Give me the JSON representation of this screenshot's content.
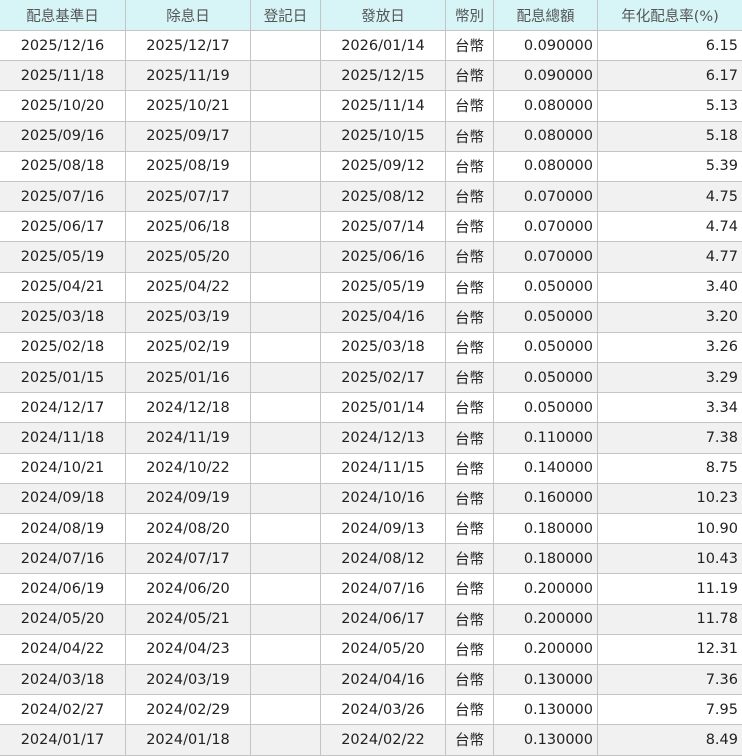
{
  "columns": [
    "配息基準日",
    "除息日",
    "登記日",
    "發放日",
    "幣別",
    "配息總額",
    "年化配息率(%)"
  ],
  "rows": [
    [
      "2025/12/16",
      "2025/12/17",
      "",
      "2026/01/14",
      "台幣",
      "0.090000",
      "6.15"
    ],
    [
      "2025/11/18",
      "2025/11/19",
      "",
      "2025/12/15",
      "台幣",
      "0.090000",
      "6.17"
    ],
    [
      "2025/10/20",
      "2025/10/21",
      "",
      "2025/11/14",
      "台幣",
      "0.080000",
      "5.13"
    ],
    [
      "2025/09/16",
      "2025/09/17",
      "",
      "2025/10/15",
      "台幣",
      "0.080000",
      "5.18"
    ],
    [
      "2025/08/18",
      "2025/08/19",
      "",
      "2025/09/12",
      "台幣",
      "0.080000",
      "5.39"
    ],
    [
      "2025/07/16",
      "2025/07/17",
      "",
      "2025/08/12",
      "台幣",
      "0.070000",
      "4.75"
    ],
    [
      "2025/06/17",
      "2025/06/18",
      "",
      "2025/07/14",
      "台幣",
      "0.070000",
      "4.74"
    ],
    [
      "2025/05/19",
      "2025/05/20",
      "",
      "2025/06/16",
      "台幣",
      "0.070000",
      "4.77"
    ],
    [
      "2025/04/21",
      "2025/04/22",
      "",
      "2025/05/19",
      "台幣",
      "0.050000",
      "3.40"
    ],
    [
      "2025/03/18",
      "2025/03/19",
      "",
      "2025/04/16",
      "台幣",
      "0.050000",
      "3.20"
    ],
    [
      "2025/02/18",
      "2025/02/19",
      "",
      "2025/03/18",
      "台幣",
      "0.050000",
      "3.26"
    ],
    [
      "2025/01/15",
      "2025/01/16",
      "",
      "2025/02/17",
      "台幣",
      "0.050000",
      "3.29"
    ],
    [
      "2024/12/17",
      "2024/12/18",
      "",
      "2025/01/14",
      "台幣",
      "0.050000",
      "3.34"
    ],
    [
      "2024/11/18",
      "2024/11/19",
      "",
      "2024/12/13",
      "台幣",
      "0.110000",
      "7.38"
    ],
    [
      "2024/10/21",
      "2024/10/22",
      "",
      "2024/11/15",
      "台幣",
      "0.140000",
      "8.75"
    ],
    [
      "2024/09/18",
      "2024/09/19",
      "",
      "2024/10/16",
      "台幣",
      "0.160000",
      "10.23"
    ],
    [
      "2024/08/19",
      "2024/08/20",
      "",
      "2024/09/13",
      "台幣",
      "0.180000",
      "10.90"
    ],
    [
      "2024/07/16",
      "2024/07/17",
      "",
      "2024/08/12",
      "台幣",
      "0.180000",
      "10.43"
    ],
    [
      "2024/06/19",
      "2024/06/20",
      "",
      "2024/07/16",
      "台幣",
      "0.200000",
      "11.19"
    ],
    [
      "2024/05/20",
      "2024/05/21",
      "",
      "2024/06/17",
      "台幣",
      "0.200000",
      "11.78"
    ],
    [
      "2024/04/22",
      "2024/04/23",
      "",
      "2024/05/20",
      "台幣",
      "0.200000",
      "12.31"
    ],
    [
      "2024/03/18",
      "2024/03/19",
      "",
      "2024/04/16",
      "台幣",
      "0.130000",
      "7.36"
    ],
    [
      "2024/02/27",
      "2024/02/29",
      "",
      "2024/03/26",
      "台幣",
      "0.130000",
      "7.95"
    ],
    [
      "2024/01/17",
      "2024/01/18",
      "",
      "2024/02/22",
      "台幣",
      "0.130000",
      "8.49"
    ]
  ],
  "colors": {
    "header_bg": "#d7f4f7",
    "alt_row_bg": "#f1f1f1",
    "border": "#c4c4c4"
  }
}
